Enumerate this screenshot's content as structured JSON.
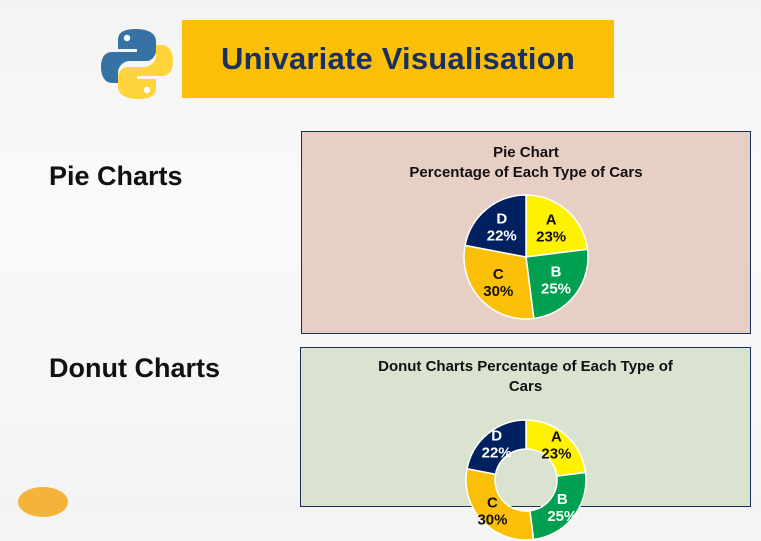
{
  "header": {
    "title": "Univariate Visualisation",
    "logo_icon": "python-logo-icon"
  },
  "sections": {
    "pie_label": "Pie Charts",
    "donut_label": "Donut Charts"
  },
  "colors": {
    "banner": "#fcbf07",
    "title_text": "#17305f",
    "A": "#fff200",
    "B": "#00a050",
    "C": "#fcbf07",
    "D": "#002060"
  },
  "chart_data": [
    {
      "type": "pie",
      "title_lines": [
        "Pie Chart",
        "Percentage of Each Type of Cars"
      ],
      "slices": [
        {
          "label": "A",
          "value": 23,
          "text": "23%"
        },
        {
          "label": "B",
          "value": 25,
          "text": "25%"
        },
        {
          "label": "C",
          "value": 30,
          "text": "30%"
        },
        {
          "label": "D",
          "value": 22,
          "text": "22%"
        }
      ]
    },
    {
      "type": "pie",
      "variant": "donut",
      "title_lines": [
        "Donut Charts Percentage of Each Type of",
        "Cars"
      ],
      "slices": [
        {
          "label": "A",
          "value": 23,
          "text": "23%"
        },
        {
          "label": "B",
          "value": 25,
          "text": "25%"
        },
        {
          "label": "C",
          "value": 30,
          "text": "30%"
        },
        {
          "label": "D",
          "value": 22,
          "text": "22%"
        }
      ]
    }
  ]
}
